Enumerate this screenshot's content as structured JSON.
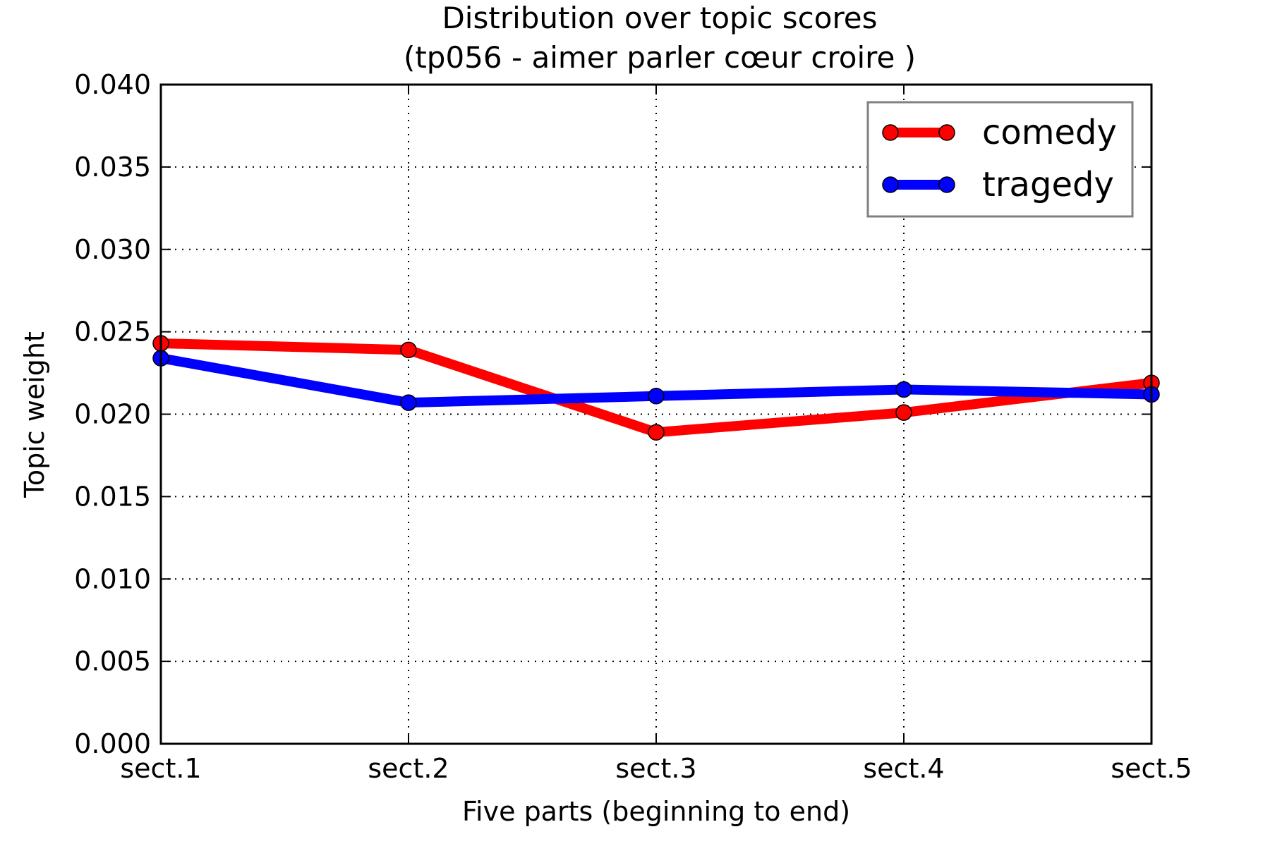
{
  "chart_data": {
    "type": "line",
    "title": "Distribution over topic scores",
    "subtitle": "(tp056 - aimer parler cœur croire )",
    "xlabel": "Five parts (beginning to end)",
    "ylabel": "Topic weight",
    "categories": [
      "sect.1",
      "sect.2",
      "sect.3",
      "sect.4",
      "sect.5"
    ],
    "ylim": [
      0,
      0.04
    ],
    "yticks": [
      "0.000",
      "0.005",
      "0.010",
      "0.015",
      "0.020",
      "0.025",
      "0.030",
      "0.035",
      "0.040"
    ],
    "grid": true,
    "legend_position": "top-right",
    "series": [
      {
        "name": "comedy",
        "color": "#ff0000",
        "values": [
          0.0243,
          0.0239,
          0.0189,
          0.0201,
          0.0219
        ]
      },
      {
        "name": "tragedy",
        "color": "#0000ff",
        "values": [
          0.0234,
          0.0207,
          0.0211,
          0.0215,
          0.0212
        ]
      }
    ]
  }
}
